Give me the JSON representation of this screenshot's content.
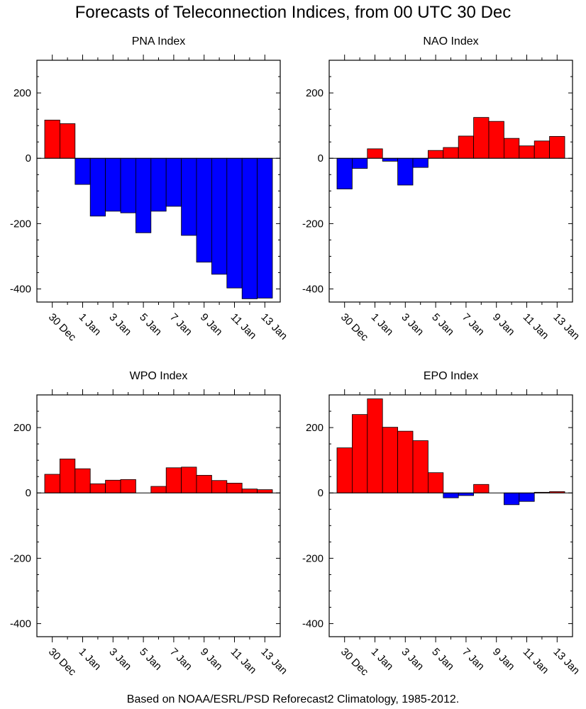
{
  "title": "Forecasts of Teleconnection Indices, from 00 UTC 30 Dec",
  "footer": "Based on NOAA/ESRL/PSD Reforecast2 Climatology, 1985-2012.",
  "colors": {
    "positive": "#ff0000",
    "negative": "#0000ff",
    "axis": "#000000"
  },
  "chart_data": [
    {
      "type": "bar",
      "title": "PNA Index",
      "categories": [
        "30 Dec",
        "31 Dec",
        "1 Jan",
        "2 Jan",
        "3 Jan",
        "4 Jan",
        "5 Jan",
        "6 Jan",
        "7 Jan",
        "8 Jan",
        "9 Jan",
        "10 Jan",
        "11 Jan",
        "12 Jan",
        "13 Jan"
      ],
      "x_tick_labels": [
        "30 Dec",
        "1 Jan",
        "3 Jan",
        "5 Jan",
        "7 Jan",
        "9 Jan",
        "11 Jan",
        "13 Jan"
      ],
      "values": [
        117,
        106,
        -80,
        -177,
        -162,
        -167,
        -228,
        -162,
        -147,
        -236,
        -318,
        -355,
        -397,
        -430,
        -428
      ],
      "ylim": [
        -440,
        300
      ],
      "y_ticks": [
        -400,
        -200,
        0,
        200
      ]
    },
    {
      "type": "bar",
      "title": "NAO Index",
      "categories": [
        "30 Dec",
        "31 Dec",
        "1 Jan",
        "2 Jan",
        "3 Jan",
        "4 Jan",
        "5 Jan",
        "6 Jan",
        "7 Jan",
        "8 Jan",
        "9 Jan",
        "10 Jan",
        "11 Jan",
        "12 Jan",
        "13 Jan"
      ],
      "x_tick_labels": [
        "30 Dec",
        "1 Jan",
        "3 Jan",
        "5 Jan",
        "7 Jan",
        "9 Jan",
        "11 Jan",
        "13 Jan"
      ],
      "values": [
        -94,
        -31,
        29,
        -9,
        -82,
        -28,
        24,
        33,
        68,
        125,
        113,
        61,
        38,
        53,
        67
      ],
      "ylim": [
        -440,
        300
      ],
      "y_ticks": [
        -400,
        -200,
        0,
        200
      ]
    },
    {
      "type": "bar",
      "title": "WPO Index",
      "categories": [
        "30 Dec",
        "31 Dec",
        "1 Jan",
        "2 Jan",
        "3 Jan",
        "4 Jan",
        "5 Jan",
        "6 Jan",
        "7 Jan",
        "8 Jan",
        "9 Jan",
        "10 Jan",
        "11 Jan",
        "12 Jan",
        "13 Jan"
      ],
      "x_tick_labels": [
        "30 Dec",
        "1 Jan",
        "3 Jan",
        "5 Jan",
        "7 Jan",
        "9 Jan",
        "11 Jan",
        "13 Jan"
      ],
      "values": [
        57,
        104,
        74,
        28,
        39,
        41,
        0,
        20,
        77,
        79,
        54,
        38,
        30,
        12,
        10
      ],
      "ylim": [
        -440,
        300
      ],
      "y_ticks": [
        -400,
        -200,
        0,
        200
      ]
    },
    {
      "type": "bar",
      "title": "EPO Index",
      "categories": [
        "30 Dec",
        "31 Dec",
        "1 Jan",
        "2 Jan",
        "3 Jan",
        "4 Jan",
        "5 Jan",
        "6 Jan",
        "7 Jan",
        "8 Jan",
        "9 Jan",
        "10 Jan",
        "11 Jan",
        "12 Jan",
        "13 Jan"
      ],
      "x_tick_labels": [
        "30 Dec",
        "1 Jan",
        "3 Jan",
        "5 Jan",
        "7 Jan",
        "9 Jan",
        "11 Jan",
        "13 Jan"
      ],
      "values": [
        138,
        240,
        288,
        201,
        189,
        160,
        62,
        -15,
        -8,
        26,
        0,
        -36,
        -26,
        2,
        4
      ],
      "ylim": [
        -440,
        300
      ],
      "y_ticks": [
        -400,
        -200,
        0,
        200
      ]
    }
  ]
}
